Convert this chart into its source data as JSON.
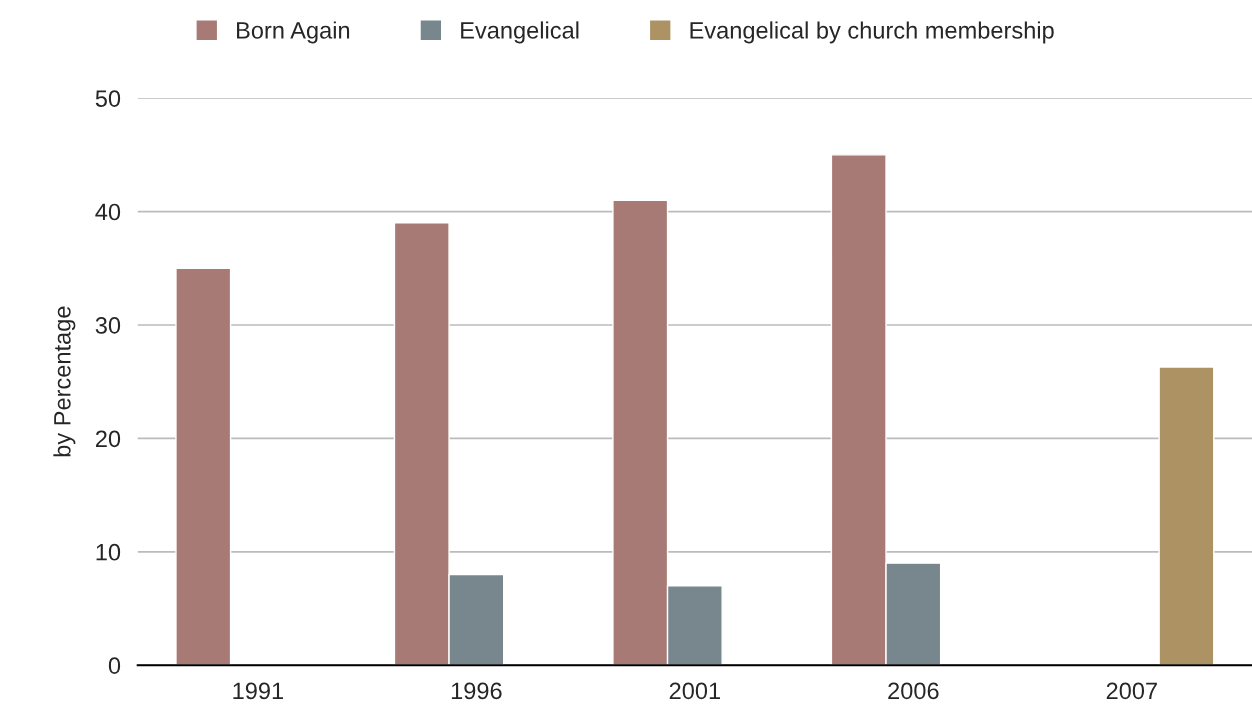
{
  "chart_data": {
    "type": "bar",
    "ylabel": "by Percentage",
    "categories": [
      "1991",
      "1996",
      "2001",
      "2006",
      "2007"
    ],
    "series": [
      {
        "name": "Born Again",
        "color": "#a87a76",
        "values": [
          35,
          39,
          41,
          45,
          null
        ]
      },
      {
        "name": "Evangelical",
        "color": "#78868e",
        "values": [
          null,
          8,
          7,
          9,
          null
        ]
      },
      {
        "name": "Evangelical by church membership",
        "color": "#ad9364",
        "values": [
          null,
          null,
          null,
          null,
          26.3
        ]
      }
    ],
    "ylim": [
      0,
      50
    ],
    "yticks": [
      0,
      10,
      20,
      30,
      40,
      50
    ],
    "grid": "y",
    "legend": "top"
  }
}
